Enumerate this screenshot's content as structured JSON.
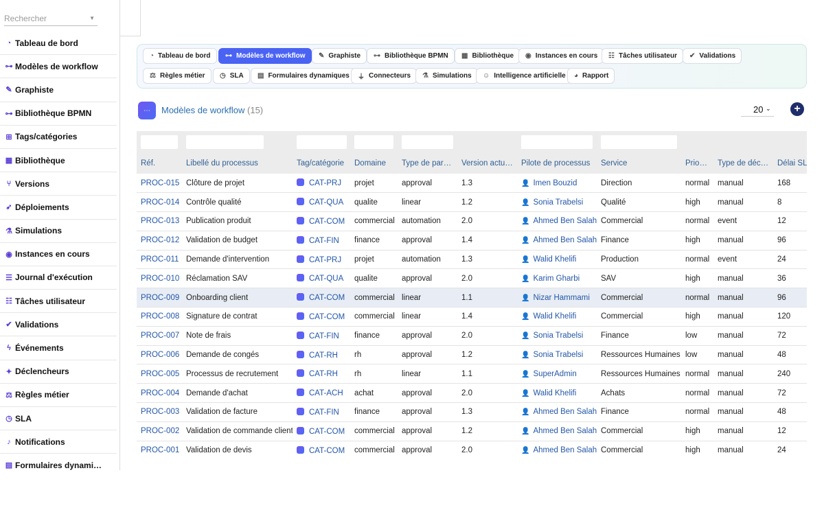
{
  "search": {
    "placeholder": "Rechercher"
  },
  "sidebar": {
    "items": [
      {
        "label": "Tableau de bord",
        "icon": "gauge-icon"
      },
      {
        "label": "Modèles de workflow",
        "icon": "workflow-icon"
      },
      {
        "label": "Graphiste",
        "icon": "pen-ruler-icon"
      },
      {
        "label": "Bibliothèque BPMN",
        "icon": "workflow-icon"
      },
      {
        "label": "Tags/catégories",
        "icon": "sitemap-icon"
      },
      {
        "label": "Bibliothèque",
        "icon": "grid-icon"
      },
      {
        "label": "Versions",
        "icon": "branch-icon"
      },
      {
        "label": "Déploiements",
        "icon": "rocket-icon"
      },
      {
        "label": "Simulations",
        "icon": "flask-icon"
      },
      {
        "label": "Instances en cours",
        "icon": "play-circle-icon"
      },
      {
        "label": "Journal d'exécution",
        "icon": "list-icon"
      },
      {
        "label": "Tâches utilisateur",
        "icon": "checklist-icon"
      },
      {
        "label": "Validations",
        "icon": "check-circle-icon"
      },
      {
        "label": "Événements",
        "icon": "bolt-icon"
      },
      {
        "label": "Déclencheurs",
        "icon": "wand-icon"
      },
      {
        "label": "Règles métier",
        "icon": "scale-icon"
      },
      {
        "label": "SLA",
        "icon": "stopwatch-icon"
      },
      {
        "label": "Notifications",
        "icon": "bell-icon"
      },
      {
        "label": "Formulaires dynami…",
        "icon": "clipboard-icon"
      }
    ]
  },
  "modules": {
    "row1": [
      {
        "label": "Tableau de bord",
        "icon": "gauge-icon",
        "active": false
      },
      {
        "label": "Modèles de workflow",
        "icon": "workflow-icon",
        "active": true
      },
      {
        "label": "Graphiste",
        "icon": "pen-ruler-icon",
        "active": false
      },
      {
        "label": "Bibliothèque BPMN",
        "icon": "workflow-icon",
        "active": false
      },
      {
        "label": "Bibliothèque",
        "icon": "grid-icon",
        "active": false
      },
      {
        "label": "Instances en cours",
        "icon": "play-circle-icon",
        "active": false
      },
      {
        "label": "Tâches utilisateur",
        "icon": "checklist-icon",
        "active": false
      },
      {
        "label": "Validations",
        "icon": "check-circle-icon",
        "active": false
      }
    ],
    "row2": [
      {
        "label": "Règles métier",
        "icon": "scale-icon",
        "active": false
      },
      {
        "label": "SLA",
        "icon": "stopwatch-icon",
        "active": false
      },
      {
        "label": "Formulaires dynamiques",
        "icon": "clipboard-icon",
        "active": false
      },
      {
        "label": "Connecteurs",
        "icon": "plug-icon",
        "active": false
      },
      {
        "label": "Simulations",
        "icon": "flask-icon",
        "active": false
      },
      {
        "label": "Intelligence artificielle",
        "icon": "robot-icon",
        "active": false
      },
      {
        "label": "Rapport",
        "icon": "pie-chart-icon",
        "active": false
      }
    ]
  },
  "page": {
    "title": "Modèles de workflow",
    "count": "(15)",
    "per_page": "20"
  },
  "table": {
    "columns": [
      "Réf.",
      "Libellé du processus",
      "Tag/catégorie",
      "Domaine",
      "Type de parc…",
      "Version actu…",
      "Pilote de processus",
      "Service",
      "Priorité",
      "Type de décl…",
      "Délai SLA"
    ],
    "rows": [
      [
        "PROC-015",
        "Clôture de projet",
        "CAT-PRJ",
        "projet",
        "approval",
        "1.3",
        "Imen Bouzid",
        "Direction",
        "normal",
        "manual",
        "168"
      ],
      [
        "PROC-014",
        "Contrôle qualité",
        "CAT-QUA",
        "qualite",
        "linear",
        "1.2",
        "Sonia Trabelsi",
        "Qualité",
        "high",
        "manual",
        "8"
      ],
      [
        "PROC-013",
        "Publication produit",
        "CAT-COM",
        "commercial",
        "automation",
        "2.0",
        "Ahmed Ben Salah",
        "Commercial",
        "normal",
        "event",
        "12"
      ],
      [
        "PROC-012",
        "Validation de budget",
        "CAT-FIN",
        "finance",
        "approval",
        "1.4",
        "Ahmed Ben Salah",
        "Finance",
        "high",
        "manual",
        "96"
      ],
      [
        "PROC-011",
        "Demande d'intervention",
        "CAT-PRJ",
        "projet",
        "automation",
        "1.3",
        "Walid Khelifi",
        "Production",
        "normal",
        "event",
        "24"
      ],
      [
        "PROC-010",
        "Réclamation SAV",
        "CAT-QUA",
        "qualite",
        "approval",
        "2.0",
        "Karim Gharbi",
        "SAV",
        "high",
        "manual",
        "36"
      ],
      [
        "PROC-009",
        "Onboarding client",
        "CAT-COM",
        "commercial",
        "linear",
        "1.1",
        "Nizar Hammami",
        "Commercial",
        "normal",
        "manual",
        "96"
      ],
      [
        "PROC-008",
        "Signature de contrat",
        "CAT-COM",
        "commercial",
        "linear",
        "1.4",
        "Walid Khelifi",
        "Commercial",
        "high",
        "manual",
        "120"
      ],
      [
        "PROC-007",
        "Note de frais",
        "CAT-FIN",
        "finance",
        "approval",
        "2.0",
        "Sonia Trabelsi",
        "Finance",
        "low",
        "manual",
        "72"
      ],
      [
        "PROC-006",
        "Demande de congés",
        "CAT-RH",
        "rh",
        "approval",
        "1.2",
        "Sonia Trabelsi",
        "Ressources Humaines",
        "low",
        "manual",
        "48"
      ],
      [
        "PROC-005",
        "Processus de recrutement",
        "CAT-RH",
        "rh",
        "linear",
        "1.1",
        "SuperAdmin",
        "Ressources Humaines",
        "normal",
        "manual",
        "240"
      ],
      [
        "PROC-004",
        "Demande d'achat",
        "CAT-ACH",
        "achat",
        "approval",
        "2.0",
        "Walid Khelifi",
        "Achats",
        "normal",
        "manual",
        "72"
      ],
      [
        "PROC-003",
        "Validation de facture",
        "CAT-FIN",
        "finance",
        "approval",
        "1.3",
        "Ahmed Ben Salah",
        "Finance",
        "normal",
        "manual",
        "48"
      ],
      [
        "PROC-002",
        "Validation de commande client",
        "CAT-COM",
        "commercial",
        "approval",
        "1.2",
        "Ahmed Ben Salah",
        "Commercial",
        "high",
        "manual",
        "12"
      ],
      [
        "PROC-001",
        "Validation de devis",
        "CAT-COM",
        "commercial",
        "approval",
        "2.0",
        "Ahmed Ben Salah",
        "Commercial",
        "high",
        "manual",
        "24"
      ]
    ],
    "highlighted_row": 6
  },
  "colors": {
    "accent": "#4a63f3",
    "sidebar_icon": "#5b3fd6",
    "link": "#2457a8",
    "header_text": "#2f5f95"
  }
}
